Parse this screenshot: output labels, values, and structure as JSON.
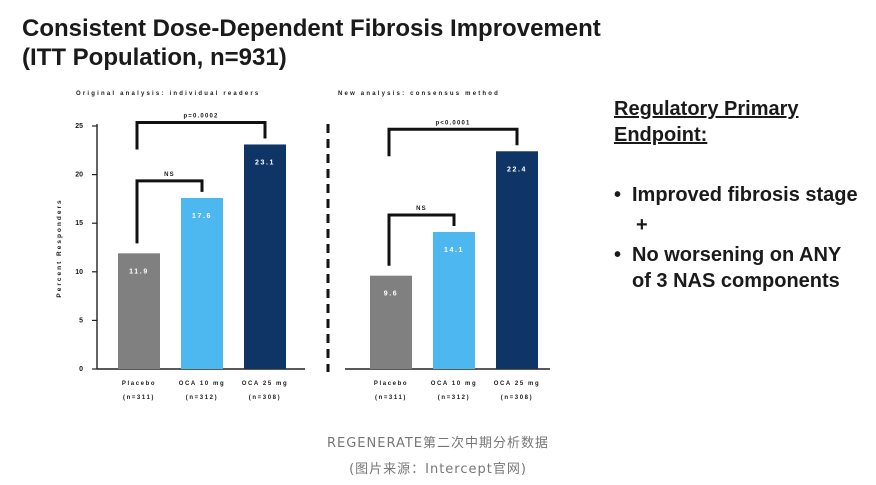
{
  "title": {
    "line1": "Consistent Dose-Dependent Fibrosis Improvement",
    "line2": "(ITT Population, n=931)"
  },
  "chart_data": [
    {
      "type": "bar",
      "title": "Original analysis: individual readers",
      "ylabel": "Percent Responders",
      "ylim": [
        0,
        25
      ],
      "yticks": [
        "0",
        "5",
        "10",
        "15",
        "20",
        "25"
      ],
      "categories": [
        "Placebo",
        "OCA 10 mg",
        "OCA 25 mg"
      ],
      "category_n": [
        "(n=311)",
        "(n=312)",
        "(n=308)"
      ],
      "values": [
        11.9,
        17.6,
        23.1
      ],
      "data_labels": [
        "11.9",
        "17.6",
        "23.1"
      ],
      "bar_colors": [
        "#808080",
        "#4db8f0",
        "#0e3566"
      ],
      "brackets": [
        {
          "from": 0,
          "to": 1,
          "label": "NS"
        },
        {
          "from": 0,
          "to": 2,
          "label": "p=0.0002"
        }
      ]
    },
    {
      "type": "bar",
      "title": "New analysis: consensus method",
      "ylim": [
        0,
        25
      ],
      "categories": [
        "Placebo",
        "OCA 10 mg",
        "OCA 25 mg"
      ],
      "category_n": [
        "(n=311)",
        "(n=312)",
        "(n=308)"
      ],
      "values": [
        9.6,
        14.1,
        22.4
      ],
      "data_labels": [
        "9.6",
        "14.1",
        "22.4"
      ],
      "bar_colors": [
        "#808080",
        "#4db8f0",
        "#0e3566"
      ],
      "brackets": [
        {
          "from": 0,
          "to": 1,
          "label": "NS"
        },
        {
          "from": 0,
          "to": 2,
          "label": "p<0.0001"
        }
      ]
    }
  ],
  "side": {
    "heading_line1": "Regulatory Primary",
    "heading_line2": "Endpoint:",
    "bullet_char": "•",
    "bullet1": "Improved fibrosis stage",
    "plus": "+",
    "bullet2": "No worsening on ANY of 3 NAS components"
  },
  "caption": {
    "line1": "REGENERATE第二次中期分析数据",
    "line2": "(图片来源：Intercept官网)"
  }
}
